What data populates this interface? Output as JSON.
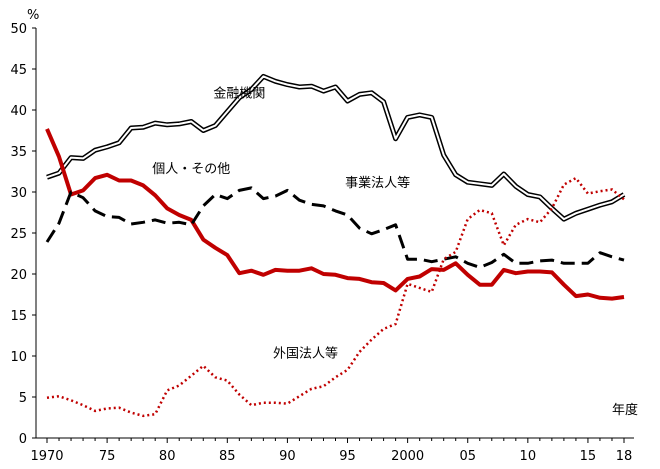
{
  "chart_data": {
    "type": "line",
    "y_unit": "%",
    "x_unit": "年度",
    "ylim": [
      0,
      50
    ],
    "yticks": [
      0,
      5,
      10,
      15,
      20,
      25,
      30,
      35,
      40,
      45,
      50
    ],
    "xlim": [
      1970,
      2018
    ],
    "xticks": [
      1970,
      1975,
      1980,
      1985,
      1990,
      1995,
      2000,
      2005,
      2010,
      2015,
      2018
    ],
    "xtick_labels": [
      "1970",
      "75",
      "80",
      "85",
      "90",
      "95",
      "2000",
      "05",
      "10",
      "15",
      "18"
    ],
    "grid": false,
    "years": [
      1970,
      1971,
      1972,
      1973,
      1974,
      1975,
      1976,
      1977,
      1978,
      1979,
      1980,
      1981,
      1982,
      1983,
      1984,
      1985,
      1986,
      1987,
      1988,
      1989,
      1990,
      1991,
      1992,
      1993,
      1994,
      1995,
      1996,
      1997,
      1998,
      1999,
      2000,
      2001,
      2002,
      2003,
      2004,
      2005,
      2006,
      2007,
      2008,
      2009,
      2010,
      2011,
      2012,
      2013,
      2014,
      2015,
      2016,
      2017,
      2018
    ],
    "series": [
      {
        "name": "金融機関",
        "color": "#000000",
        "style": "double",
        "values": [
          31.8,
          32.3,
          34.2,
          34.1,
          35.1,
          35.5,
          36.0,
          37.8,
          37.9,
          38.4,
          38.2,
          38.3,
          38.6,
          37.5,
          38.1,
          39.8,
          41.5,
          42.5,
          44.1,
          43.5,
          43.1,
          42.8,
          42.9,
          42.3,
          42.8,
          41.1,
          41.9,
          42.1,
          41.0,
          36.5,
          39.1,
          39.4,
          39.1,
          34.5,
          32.1,
          31.2,
          31.0,
          30.8,
          32.2,
          30.7,
          29.7,
          29.4,
          28.0,
          26.7,
          27.4,
          27.9,
          28.4,
          28.8,
          29.7
        ]
      },
      {
        "name": "個人・その他",
        "color": "#c00000",
        "style": "thick",
        "values": [
          37.7,
          34.3,
          29.7,
          30.2,
          31.7,
          32.1,
          31.4,
          31.4,
          30.8,
          29.6,
          28.0,
          27.2,
          26.6,
          24.2,
          23.2,
          22.3,
          20.1,
          20.4,
          19.9,
          20.5,
          20.4,
          20.4,
          20.7,
          20.0,
          19.9,
          19.5,
          19.4,
          19.0,
          18.9,
          18.0,
          19.4,
          19.7,
          20.6,
          20.5,
          21.3,
          19.9,
          18.7,
          18.7,
          20.5,
          20.1,
          20.3,
          20.3,
          20.2,
          18.7,
          17.3,
          17.5,
          17.1,
          17.0,
          17.2
        ]
      },
      {
        "name": "事業法人等",
        "color": "#000000",
        "style": "dashed",
        "values": [
          23.9,
          26.2,
          30.0,
          29.3,
          27.7,
          27.0,
          26.9,
          26.1,
          26.3,
          26.6,
          26.2,
          26.3,
          26.0,
          28.3,
          29.7,
          29.2,
          30.2,
          30.5,
          29.2,
          29.5,
          30.2,
          29.0,
          28.5,
          28.3,
          27.7,
          27.2,
          25.6,
          24.9,
          25.4,
          26.0,
          21.8,
          21.8,
          21.5,
          21.8,
          22.1,
          21.3,
          20.8,
          21.4,
          22.4,
          21.3,
          21.3,
          21.6,
          21.7,
          21.3,
          21.3,
          21.3,
          22.6,
          22.1,
          21.7
        ]
      },
      {
        "name": "外国法人等",
        "color": "#c00000",
        "style": "dotted",
        "values": [
          4.9,
          5.1,
          4.6,
          4.0,
          3.3,
          3.6,
          3.7,
          3.1,
          2.7,
          2.9,
          5.8,
          6.4,
          7.6,
          8.8,
          7.4,
          7.0,
          5.3,
          4.0,
          4.3,
          4.3,
          4.2,
          5.1,
          6.0,
          6.3,
          7.4,
          8.3,
          10.5,
          12.0,
          13.3,
          13.9,
          18.8,
          18.3,
          17.8,
          21.8,
          22.7,
          26.7,
          27.8,
          27.4,
          23.5,
          26.0,
          26.7,
          26.3,
          28.0,
          30.9,
          31.7,
          29.8,
          30.1,
          30.3,
          29.1
        ]
      }
    ],
    "annotations": [
      {
        "text": "金融機関",
        "x": 1986,
        "y": 41.5
      },
      {
        "text": "個人・その他",
        "x": 1982,
        "y": 32.3
      },
      {
        "text": "事業法人等",
        "x": 1997.5,
        "y": 30.6
      },
      {
        "text": "外国法人等",
        "x": 1991.5,
        "y": 9.8
      }
    ]
  }
}
